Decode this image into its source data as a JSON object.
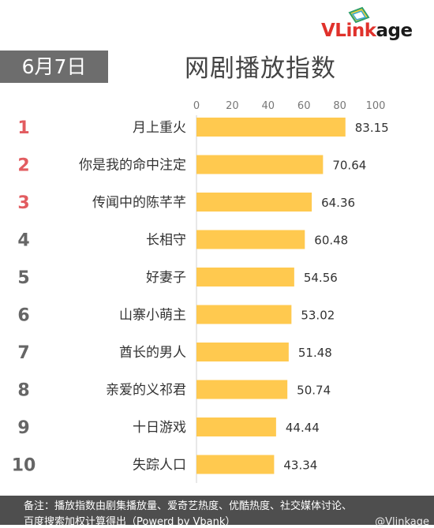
{
  "header": {
    "logo_text": "VLinkage",
    "date": "6月7日",
    "title": "网剧播放指数"
  },
  "chart_data": {
    "type": "bar",
    "orientation": "horizontal",
    "title": "网剧播放指数",
    "ranks": [
      "1",
      "2",
      "3",
      "4",
      "5",
      "6",
      "7",
      "8",
      "9",
      "10"
    ],
    "categories": [
      "月上重火",
      "你是我的命中注定",
      "传闻中的陈芊芊",
      "长相守",
      "好妻子",
      "山寨小萌主",
      "酋长的男人",
      "亲爱的义祁君",
      "十日游戏",
      "失踪人口"
    ],
    "values": [
      83.15,
      70.64,
      64.36,
      60.48,
      54.56,
      53.02,
      51.48,
      50.74,
      44.44,
      43.34
    ],
    "value_labels": [
      "83.15",
      "70.64",
      "64.36",
      "60.48",
      "54.56",
      "53.02",
      "51.48",
      "50.74",
      "44.44",
      "43.34"
    ],
    "xlim": [
      0,
      100
    ],
    "xticks": [
      "0",
      "20",
      "40",
      "60",
      "80",
      "100"
    ],
    "bar_color": "#ffc94f",
    "top_rank_color": "#e25c60",
    "grid": false,
    "axis_position": "top"
  },
  "footer": {
    "line1": "备注：播放指数由剧集播放量、爱奇艺热度、优酷热度、社交媒体讨论、",
    "line2": "百度搜索加权计算得出（Powerd by Vbank）",
    "watermark": "@Vlinkage"
  }
}
